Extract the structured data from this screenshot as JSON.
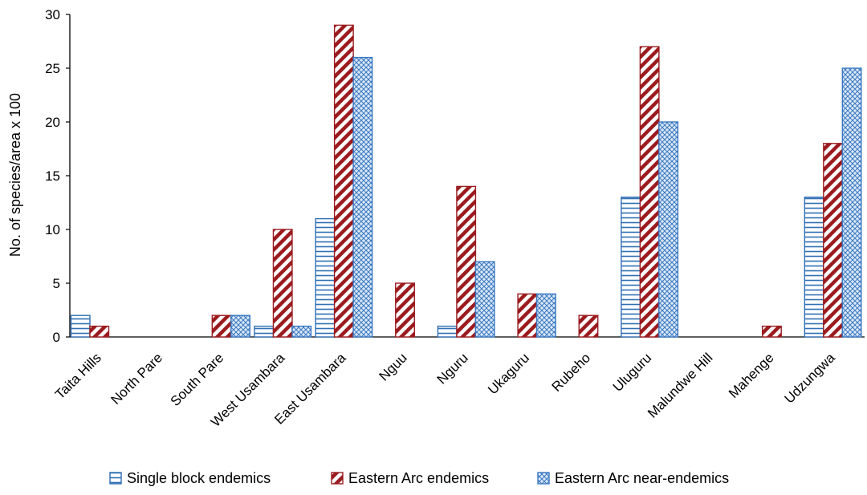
{
  "chart_data": {
    "type": "bar",
    "ylabel": "No. of species/area x 100",
    "ylim": [
      0,
      30
    ],
    "yticks": [
      0,
      5,
      10,
      15,
      20,
      25,
      30
    ],
    "grid": false,
    "legend_position": "bottom",
    "categories": [
      "Taita Hills",
      "North Pare",
      "South Pare",
      "West Usambara",
      "East Usambara",
      "Nguu",
      "Nguru",
      "Ukaguru",
      "Rubeho",
      "Uluguru",
      "Malundwe Hill",
      "Mahenge",
      "Udzungwa"
    ],
    "series": [
      {
        "name": "Single block endemics",
        "color": "#2f6fb5",
        "pattern": "horizontal-stripes",
        "values": [
          2,
          0,
          0,
          1,
          11,
          0,
          1,
          0,
          0,
          13,
          0,
          0,
          13
        ]
      },
      {
        "name": "Eastern Arc endemics",
        "color": "#9b1b1f",
        "pattern": "diagonal-stripes",
        "values": [
          1,
          0,
          2,
          10,
          29,
          5,
          14,
          4,
          2,
          27,
          0,
          1,
          18
        ]
      },
      {
        "name": "Eastern Arc near-endemics",
        "color": "#3a78c2",
        "pattern": "crosshatch",
        "values": [
          0,
          0,
          2,
          1,
          26,
          0,
          7,
          4,
          0,
          20,
          0,
          0,
          25
        ]
      }
    ]
  }
}
